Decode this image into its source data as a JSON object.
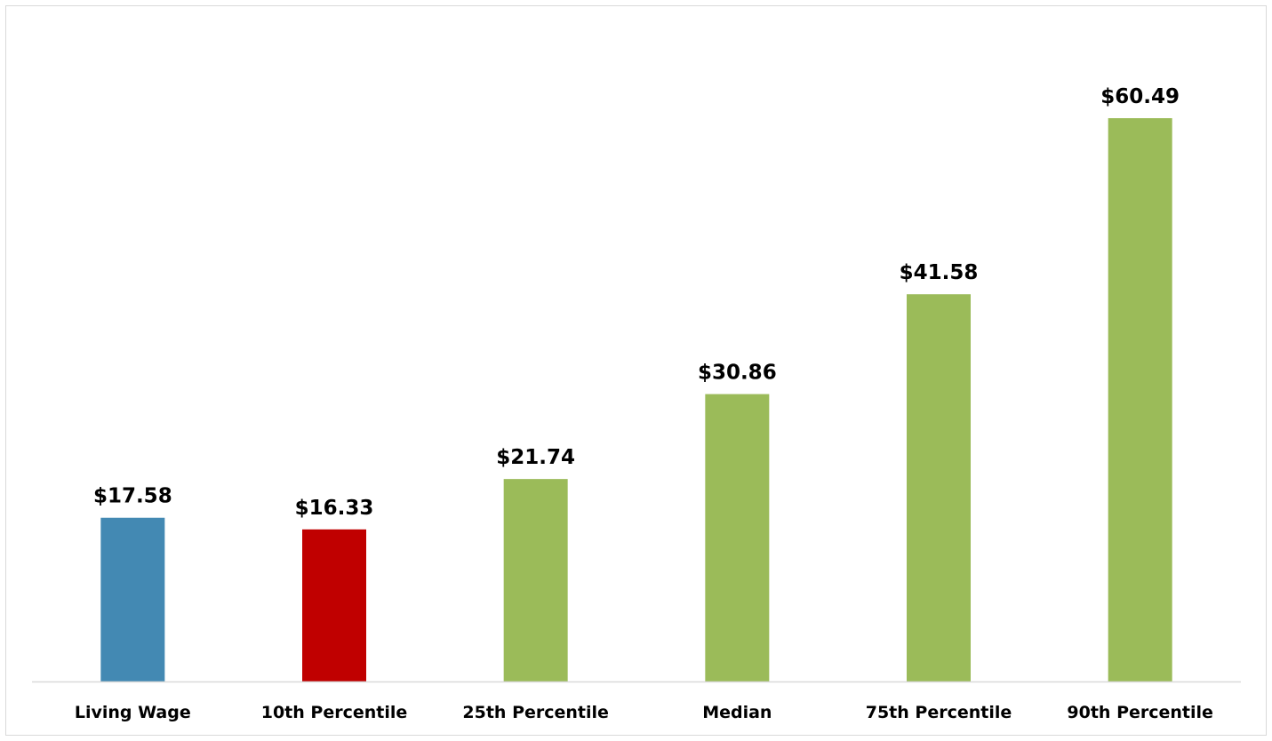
{
  "chart_data": {
    "type": "bar",
    "categories": [
      "Living Wage",
      "10th Percentile",
      "25th Percentile",
      "Median",
      "75th Percentile",
      "90th Percentile"
    ],
    "values": [
      17.58,
      16.33,
      21.74,
      30.86,
      41.58,
      60.49
    ],
    "data_labels": [
      "$17.58",
      "$16.33",
      "$21.74",
      "$30.86",
      "$41.58",
      "$60.49"
    ],
    "colors": [
      "#4389b3",
      "#c00000",
      "#9bbb59",
      "#9bbb59",
      "#9bbb59",
      "#9bbb59"
    ],
    "axis_color": "#d9d9d9",
    "title": "",
    "xlabel": "",
    "ylabel": "",
    "ylim": [
      0,
      60.49
    ],
    "grid": false,
    "legend": "none"
  }
}
